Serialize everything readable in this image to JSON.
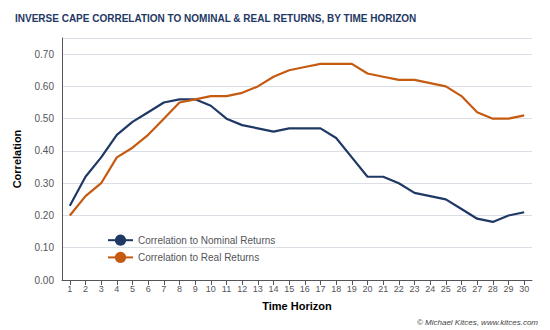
{
  "chart_data": {
    "type": "line",
    "title": "INVERSE CAPE CORRELATION TO NOMINAL & REAL RETURNS, BY TIME HORIZON",
    "x_label": "Time Horizon",
    "y_label": "Correlation",
    "x": [
      1,
      2,
      3,
      4,
      5,
      6,
      7,
      8,
      9,
      10,
      11,
      12,
      13,
      14,
      15,
      16,
      17,
      18,
      19,
      20,
      21,
      22,
      23,
      24,
      25,
      26,
      27,
      28,
      29,
      30
    ],
    "series": [
      {
        "name": "Correlation to Nominal Returns",
        "color": "#1F3864",
        "values": [
          0.23,
          0.32,
          0.38,
          0.45,
          0.49,
          0.52,
          0.55,
          0.56,
          0.56,
          0.54,
          0.5,
          0.48,
          0.47,
          0.46,
          0.47,
          0.47,
          0.47,
          0.44,
          0.38,
          0.32,
          0.32,
          0.3,
          0.27,
          0.26,
          0.25,
          0.22,
          0.19,
          0.18,
          0.2,
          0.21
        ]
      },
      {
        "name": "Correlation to Real Returns",
        "color": "#C55A11",
        "values": [
          0.2,
          0.26,
          0.3,
          0.38,
          0.41,
          0.45,
          0.5,
          0.55,
          0.56,
          0.57,
          0.57,
          0.58,
          0.6,
          0.63,
          0.65,
          0.66,
          0.67,
          0.67,
          0.67,
          0.64,
          0.63,
          0.62,
          0.62,
          0.61,
          0.6,
          0.57,
          0.52,
          0.5,
          0.5,
          0.51
        ]
      }
    ],
    "xlim": [
      0.5,
      30.5
    ],
    "xticks": [
      1,
      2,
      3,
      4,
      5,
      6,
      7,
      8,
      9,
      10,
      11,
      12,
      13,
      14,
      15,
      16,
      17,
      18,
      19,
      20,
      21,
      22,
      23,
      24,
      25,
      26,
      27,
      28,
      29,
      30
    ],
    "ylim": [
      0.0,
      0.75
    ],
    "yticks": [
      {
        "value": 0.0,
        "label": "0.00"
      },
      {
        "value": 0.1,
        "label": "0.10"
      },
      {
        "value": 0.2,
        "label": "0.20"
      },
      {
        "value": 0.3,
        "label": "0.30"
      },
      {
        "value": 0.4,
        "label": "0.40"
      },
      {
        "value": 0.5,
        "label": "0.50"
      },
      {
        "value": 0.6,
        "label": "0.60"
      },
      {
        "value": 0.7,
        "label": "0.70"
      }
    ],
    "grid": "y",
    "legend": "lower left",
    "annotations": [
      "© Michael Kitces, www.kitces.com"
    ]
  }
}
